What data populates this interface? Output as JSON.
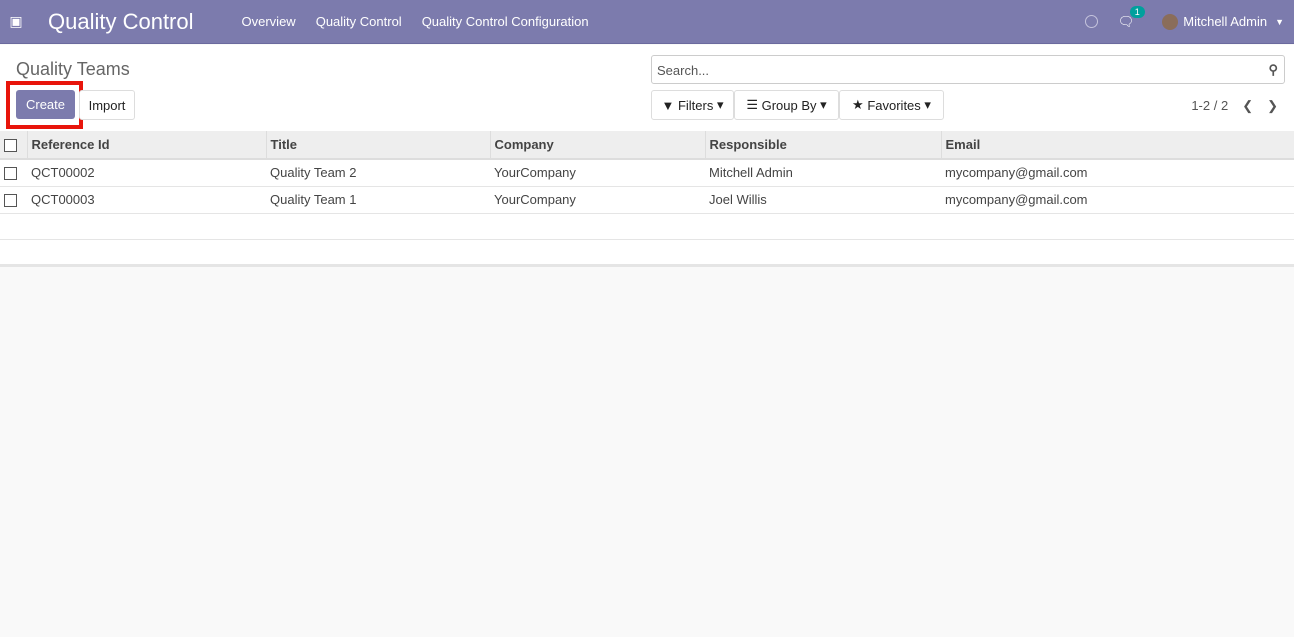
{
  "navbar": {
    "app_title": "Quality Control",
    "menus": [
      "Overview",
      "Quality Control",
      "Quality Control Configuration"
    ],
    "chat_count": "1",
    "user": "Mitchell Admin"
  },
  "page": {
    "title": "Quality Teams",
    "create": "Create",
    "import": "Import",
    "search_placeholder": "Search...",
    "filters": "Filters",
    "group_by": "Group By",
    "favorites": "Favorites",
    "pager": "1-2 / 2"
  },
  "table": {
    "headers": [
      "Reference Id",
      "Title",
      "Company",
      "Responsible",
      "Email"
    ],
    "rows": [
      [
        "QCT00002",
        "Quality Team 2",
        "YourCompany",
        "Mitchell Admin",
        "mycompany@gmail.com"
      ],
      [
        "QCT00003",
        "Quality Team 1",
        "YourCompany",
        "Joel Willis",
        "mycompany@gmail.com"
      ]
    ]
  },
  "colors": {
    "brand": "#7c7bad",
    "highlight": "#e8150b"
  }
}
